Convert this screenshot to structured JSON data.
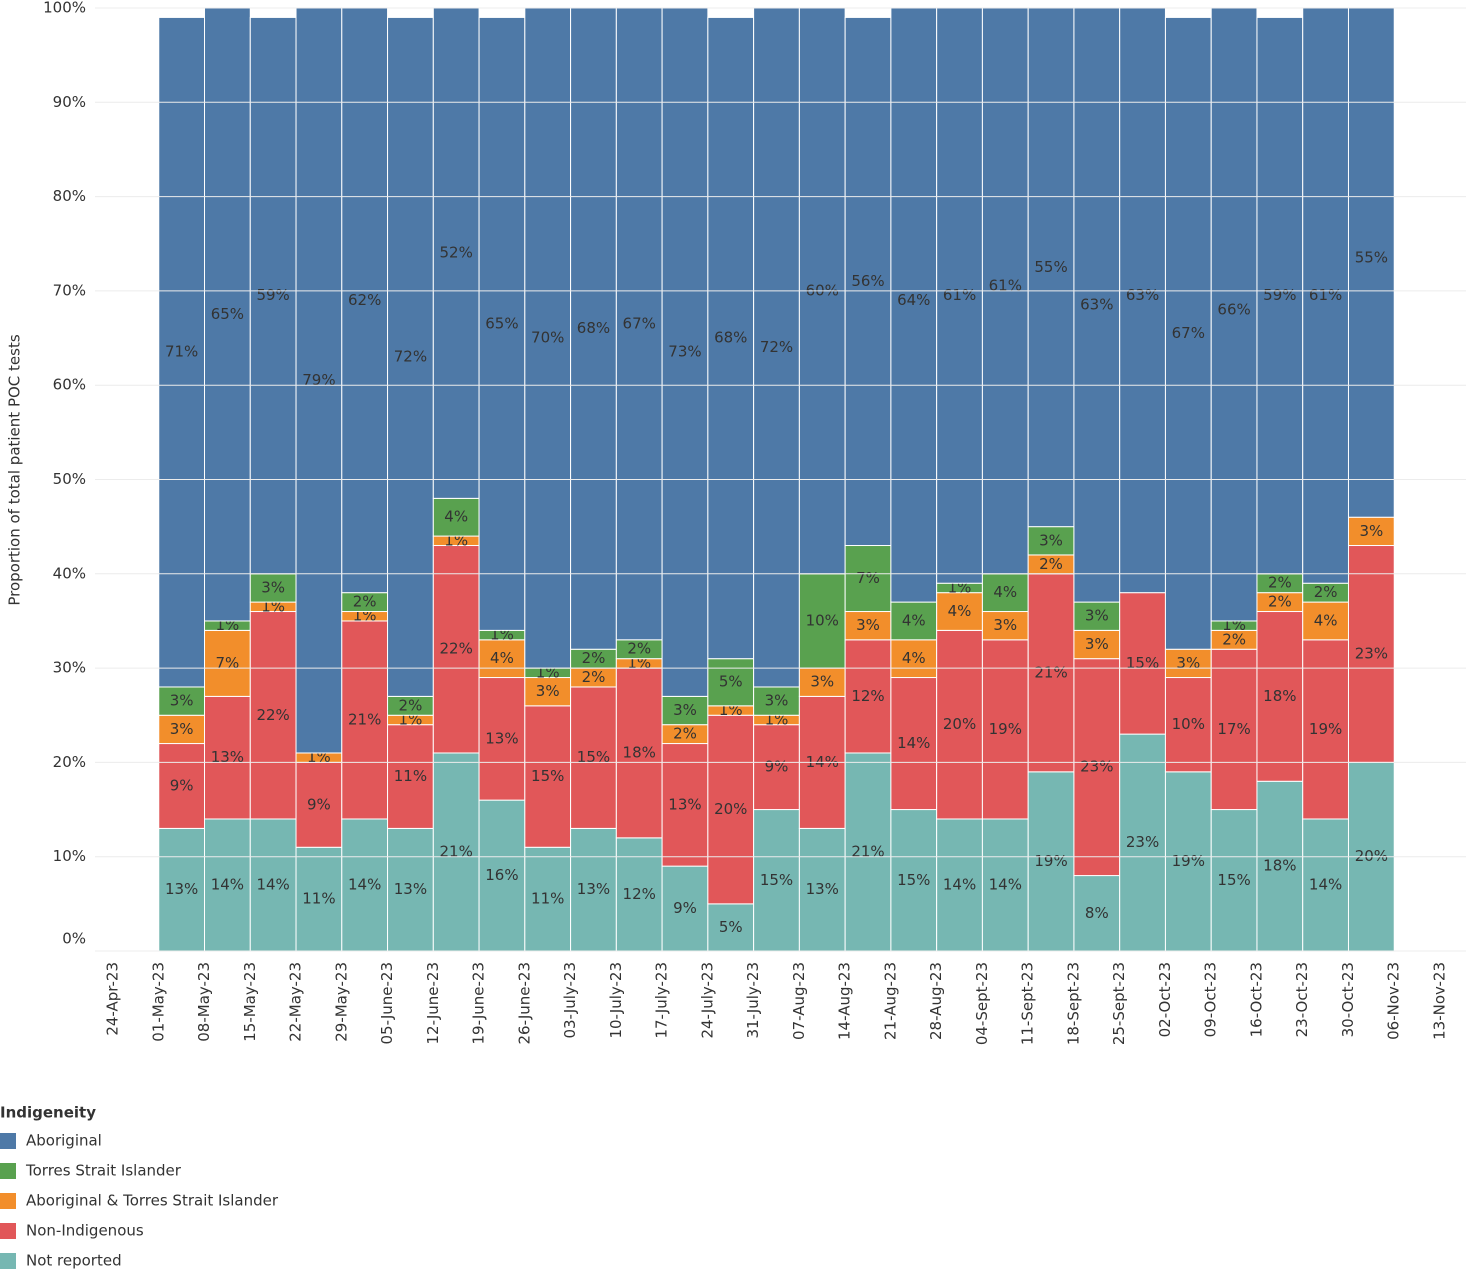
{
  "chart_data": {
    "type": "stacked_bar",
    "y_label": "Proportion of total patient POC tests",
    "legend_title": "Indigeneity",
    "categories": [
      "24-Apr-23",
      "01-May-23",
      "08-May-23",
      "15-May-23",
      "22-May-23",
      "29-May-23",
      "05-June-23",
      "12-June-23",
      "19-June-23",
      "26-June-23",
      "03-July-23",
      "10-July-23",
      "17-July-23",
      "24-July-23",
      "31-July-23",
      "07-Aug-23",
      "14-Aug-23",
      "21-Aug-23",
      "28-Aug-23",
      "04-Sept-23",
      "11-Sept-23",
      "18-Sept-23",
      "25-Sept-23",
      "02-Oct-23",
      "09-Oct-23",
      "16-Oct-23",
      "23-Oct-23",
      "30-Oct-23",
      "06-Nov-23",
      "13-Nov-23"
    ],
    "ylim": [
      0,
      100
    ],
    "yticks": [
      {
        "value": 0,
        "label": "0%"
      },
      {
        "value": 10,
        "label": "10%"
      },
      {
        "value": 20,
        "label": "20%"
      },
      {
        "value": 30,
        "label": "30%"
      },
      {
        "value": 40,
        "label": "40%"
      },
      {
        "value": 50,
        "label": "50%"
      },
      {
        "value": 60,
        "label": "60%"
      },
      {
        "value": 70,
        "label": "70%"
      },
      {
        "value": 80,
        "label": "80%"
      },
      {
        "value": 90,
        "label": "90%"
      },
      {
        "value": 100,
        "label": "100%"
      }
    ],
    "grid": true,
    "series": [
      {
        "name": "Not reported",
        "color": "#76b7b2",
        "values": [
          null,
          13,
          14,
          14,
          11,
          14,
          13,
          21,
          16,
          11,
          13,
          12,
          9,
          5,
          15,
          13,
          21,
          15,
          14,
          14,
          19,
          8,
          23,
          19,
          15,
          18,
          14,
          20,
          null,
          null
        ],
        "value_labels": [
          null,
          "13%",
          "14%",
          "14%",
          "11%",
          "14%",
          "13%",
          "21%",
          "16%",
          "11%",
          "13%",
          "12%",
          "9%",
          "5%",
          "15%",
          "13%",
          "21%",
          "15%",
          "14%",
          "14%",
          "19%",
          "8%",
          "23%",
          "19%",
          "15%",
          "18%",
          "14%",
          "20%",
          null,
          null
        ]
      },
      {
        "name": "Non-Indigenous",
        "color": "#e15759",
        "values": [
          null,
          9,
          13,
          22,
          9,
          21,
          11,
          22,
          13,
          15,
          15,
          18,
          13,
          20,
          9,
          14,
          12,
          14,
          20,
          19,
          21,
          23,
          15,
          10,
          17,
          18,
          19,
          23,
          null,
          null
        ],
        "value_labels": [
          null,
          "9%",
          "13%",
          "22%",
          "9%",
          "21%",
          "11%",
          "22%",
          "13%",
          "15%",
          "15%",
          "18%",
          "13%",
          "20%",
          "9%",
          "14%",
          "12%",
          "14%",
          "20%",
          "19%",
          "21%",
          "23%",
          "15%",
          "10%",
          "17%",
          "18%",
          "19%",
          "23%",
          null,
          null
        ]
      },
      {
        "name": "Aboriginal & Torres Strait Islander",
        "color": "#f28e2b",
        "values": [
          null,
          3,
          7,
          1,
          1,
          1,
          1,
          1,
          4,
          3,
          2,
          1,
          2,
          1,
          1,
          3,
          3,
          4,
          4,
          3,
          2,
          3,
          null,
          3,
          2,
          2,
          4,
          3,
          null,
          null
        ],
        "value_labels": [
          null,
          "3%",
          "7%",
          "1%",
          "1%",
          "1%",
          "1%",
          "1%",
          "4%",
          "3%",
          "2%",
          "1%",
          "2%",
          "1%",
          "1%",
          "3%",
          "3%",
          "4%",
          "4%",
          "3%",
          "2%",
          "3%",
          null,
          "3%",
          "2%",
          "2%",
          "4%",
          "3%",
          null,
          null
        ]
      },
      {
        "name": "Torres Strait Islander",
        "color": "#59a14f",
        "values": [
          null,
          3,
          1,
          3,
          null,
          2,
          2,
          4,
          1,
          1,
          2,
          2,
          3,
          5,
          3,
          10,
          7,
          4,
          1,
          4,
          3,
          3,
          null,
          null,
          1,
          2,
          2,
          null,
          null,
          null
        ],
        "value_labels": [
          null,
          "3%",
          "1%",
          "3%",
          null,
          "2%",
          "2%",
          "4%",
          "1%",
          "1%",
          "2%",
          "2%",
          "3%",
          "5%",
          "3%",
          "10%",
          "7%",
          "4%",
          "1%",
          "4%",
          "3%",
          "3%",
          null,
          null,
          "1%",
          "2%",
          "2%",
          null,
          null,
          null
        ]
      },
      {
        "name": "Aboriginal",
        "color": "#4e79a7",
        "values": [
          null,
          71,
          65,
          59,
          79,
          62,
          72,
          52,
          65,
          70,
          68,
          67,
          73,
          68,
          72,
          60,
          56,
          64,
          61,
          61,
          55,
          63,
          63,
          67,
          66,
          59,
          61,
          55,
          null,
          null
        ],
        "value_labels": [
          null,
          "71%",
          "65%",
          "59%",
          "79%",
          "62%",
          "72%",
          "52%",
          "65%",
          "70%",
          "68%",
          "67%",
          "73%",
          "68%",
          "72%",
          "60%",
          "56%",
          "64%",
          "61%",
          "61%",
          "55%",
          "63%",
          "63%",
          "67%",
          "66%",
          "59%",
          "61%",
          "55%",
          null,
          null
        ]
      }
    ]
  }
}
